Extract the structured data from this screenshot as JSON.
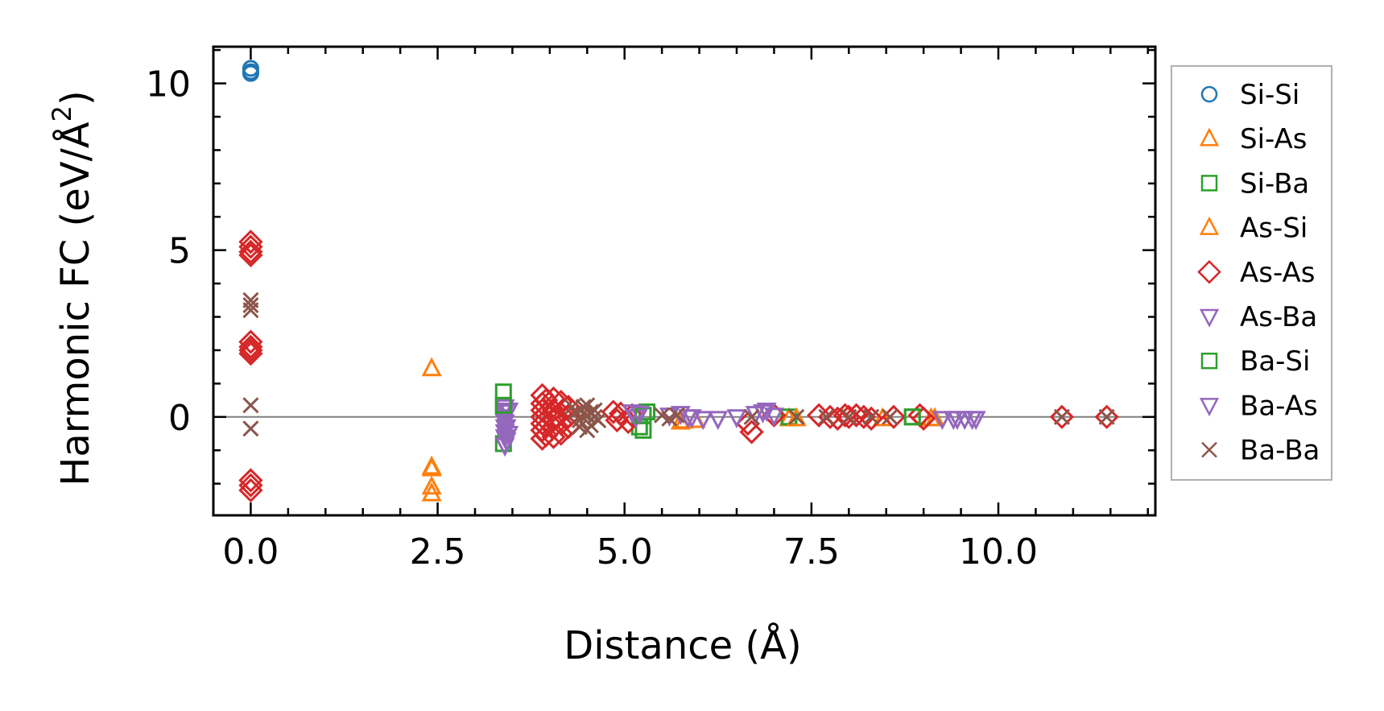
{
  "chart_data": {
    "type": "scatter",
    "title": "",
    "xlabel": "Distance (Å)",
    "ylabel_main": "Harmonic FC (eV/Å",
    "ylabel_sup": "2",
    "ylabel_close": ")",
    "xlim": [
      -0.5,
      12.1
    ],
    "ylim": [
      -2.95,
      11.1
    ],
    "xticks": [
      0.0,
      2.5,
      5.0,
      7.5,
      10.0
    ],
    "xtick_labels": [
      "0.0",
      "2.5",
      "5.0",
      "7.5",
      "10.0"
    ],
    "yticks": [
      0,
      5,
      10
    ],
    "ytick_labels": [
      "0",
      "5",
      "10"
    ],
    "zero_line": true,
    "legend_position": "outside-right",
    "series": [
      {
        "name": "Si-Si",
        "marker": "circle",
        "color": "#1f77b4",
        "x": [
          0.0,
          0.0,
          0.0
        ],
        "y": [
          10.35,
          10.45,
          10.3
        ]
      },
      {
        "name": "Si-As",
        "marker": "triangle-up",
        "color": "#ff7f0e",
        "x": [
          2.42,
          2.42,
          2.42,
          2.42,
          5.75,
          5.95,
          7.2,
          8.45,
          9.1
        ],
        "y": [
          1.45,
          -1.5,
          -2.1,
          -2.3,
          -0.15,
          -0.1,
          -0.05,
          -0.05,
          -0.05
        ]
      },
      {
        "name": "Si-Ba",
        "marker": "square",
        "color": "#2ca02c",
        "x": [
          3.38,
          3.38,
          3.38,
          5.2,
          5.3,
          5.25,
          7.2,
          8.85
        ],
        "y": [
          0.75,
          0.3,
          -0.8,
          -0.3,
          0.15,
          -0.4,
          0.0,
          0.0
        ]
      },
      {
        "name": "As-Si",
        "marker": "triangle-up",
        "color": "#ff7f0e",
        "x": [
          2.42,
          5.8,
          7.3,
          9.15
        ],
        "y": [
          -1.55,
          -0.12,
          -0.05,
          -0.05
        ]
      },
      {
        "name": "As-As",
        "marker": "diamond",
        "color": "#d62728",
        "x": [
          0.0,
          0.0,
          0.0,
          0.0,
          0.0,
          0.0,
          0.0,
          0.0,
          0.0,
          0.0,
          0.0,
          3.9,
          3.9,
          3.9,
          3.9,
          3.9,
          3.9,
          3.9,
          3.95,
          3.95,
          3.95,
          3.95,
          4.05,
          4.05,
          4.05,
          4.05,
          4.05,
          4.15,
          4.15,
          4.15,
          4.15,
          4.25,
          4.25,
          4.25,
          4.85,
          4.9,
          4.95,
          5.05,
          5.1,
          6.65,
          6.7,
          7.0,
          7.6,
          7.75,
          7.85,
          7.95,
          8.0,
          8.1,
          8.2,
          8.3,
          8.6,
          8.95,
          9.0,
          10.85,
          11.45
        ],
        "y": [
          5.25,
          5.1,
          4.95,
          4.85,
          2.25,
          2.1,
          2.0,
          1.9,
          -1.9,
          -2.05,
          -2.2,
          0.65,
          0.4,
          0.2,
          0.0,
          -0.2,
          -0.4,
          -0.65,
          0.5,
          0.1,
          -0.3,
          -0.55,
          0.55,
          0.2,
          -0.05,
          -0.3,
          -0.6,
          0.45,
          0.1,
          -0.2,
          -0.5,
          0.3,
          0.0,
          -0.3,
          0.15,
          -0.1,
          0.1,
          -0.15,
          0.05,
          -0.2,
          -0.45,
          0.05,
          0.05,
          0.0,
          -0.05,
          0.05,
          0.0,
          0.05,
          0.0,
          -0.05,
          0.0,
          0.05,
          -0.05,
          0.0,
          0.0
        ]
      },
      {
        "name": "As-Ba",
        "marker": "triangle-down",
        "color": "#9467bd",
        "x": [
          3.4,
          3.4,
          3.4,
          3.4,
          3.4,
          3.4,
          3.4,
          3.4,
          3.45,
          3.45,
          5.1,
          5.15,
          5.6,
          5.75,
          5.85,
          6.05,
          6.25,
          6.5,
          6.85,
          7.0,
          9.25,
          9.4,
          9.55,
          9.7
        ],
        "y": [
          0.3,
          0.15,
          0.0,
          -0.15,
          -0.3,
          -0.45,
          -0.6,
          -0.85,
          0.2,
          -0.5,
          0.15,
          0.0,
          0.05,
          0.1,
          0.0,
          -0.05,
          -0.05,
          0.0,
          0.15,
          0.05,
          -0.05,
          -0.05,
          -0.05,
          -0.05
        ]
      },
      {
        "name": "Ba-Si",
        "marker": "square",
        "color": "#2ca02c",
        "x": [
          3.38,
          5.25,
          8.85
        ],
        "y": [
          0.35,
          0.05,
          0.0
        ]
      },
      {
        "name": "Ba-As",
        "marker": "triangle-down",
        "color": "#9467bd",
        "x": [
          3.42,
          3.42,
          5.2,
          5.9,
          6.75,
          6.9,
          9.45,
          9.65
        ],
        "y": [
          -0.3,
          -0.7,
          0.1,
          0.0,
          0.1,
          0.2,
          -0.05,
          -0.05
        ]
      },
      {
        "name": "Ba-Ba",
        "marker": "x",
        "color": "#8c564b",
        "x": [
          0.0,
          0.0,
          0.0,
          0.0,
          0.0,
          4.3,
          4.35,
          4.4,
          4.45,
          4.5,
          4.55,
          4.6,
          4.65,
          4.4,
          4.5,
          4.6,
          4.5,
          4.45,
          4.55,
          5.5,
          5.6,
          5.7,
          6.7,
          7.3,
          7.7,
          8.0,
          8.3,
          8.55,
          10.85,
          11.45
        ],
        "y": [
          3.5,
          3.35,
          3.2,
          0.35,
          -0.35,
          0.3,
          0.15,
          -0.1,
          0.3,
          0.05,
          -0.25,
          0.2,
          -0.1,
          -0.3,
          0.35,
          0.0,
          -0.4,
          0.1,
          0.15,
          0.05,
          -0.05,
          0.05,
          0.0,
          0.0,
          0.0,
          0.0,
          0.0,
          0.0,
          0.0,
          0.0
        ]
      }
    ]
  }
}
